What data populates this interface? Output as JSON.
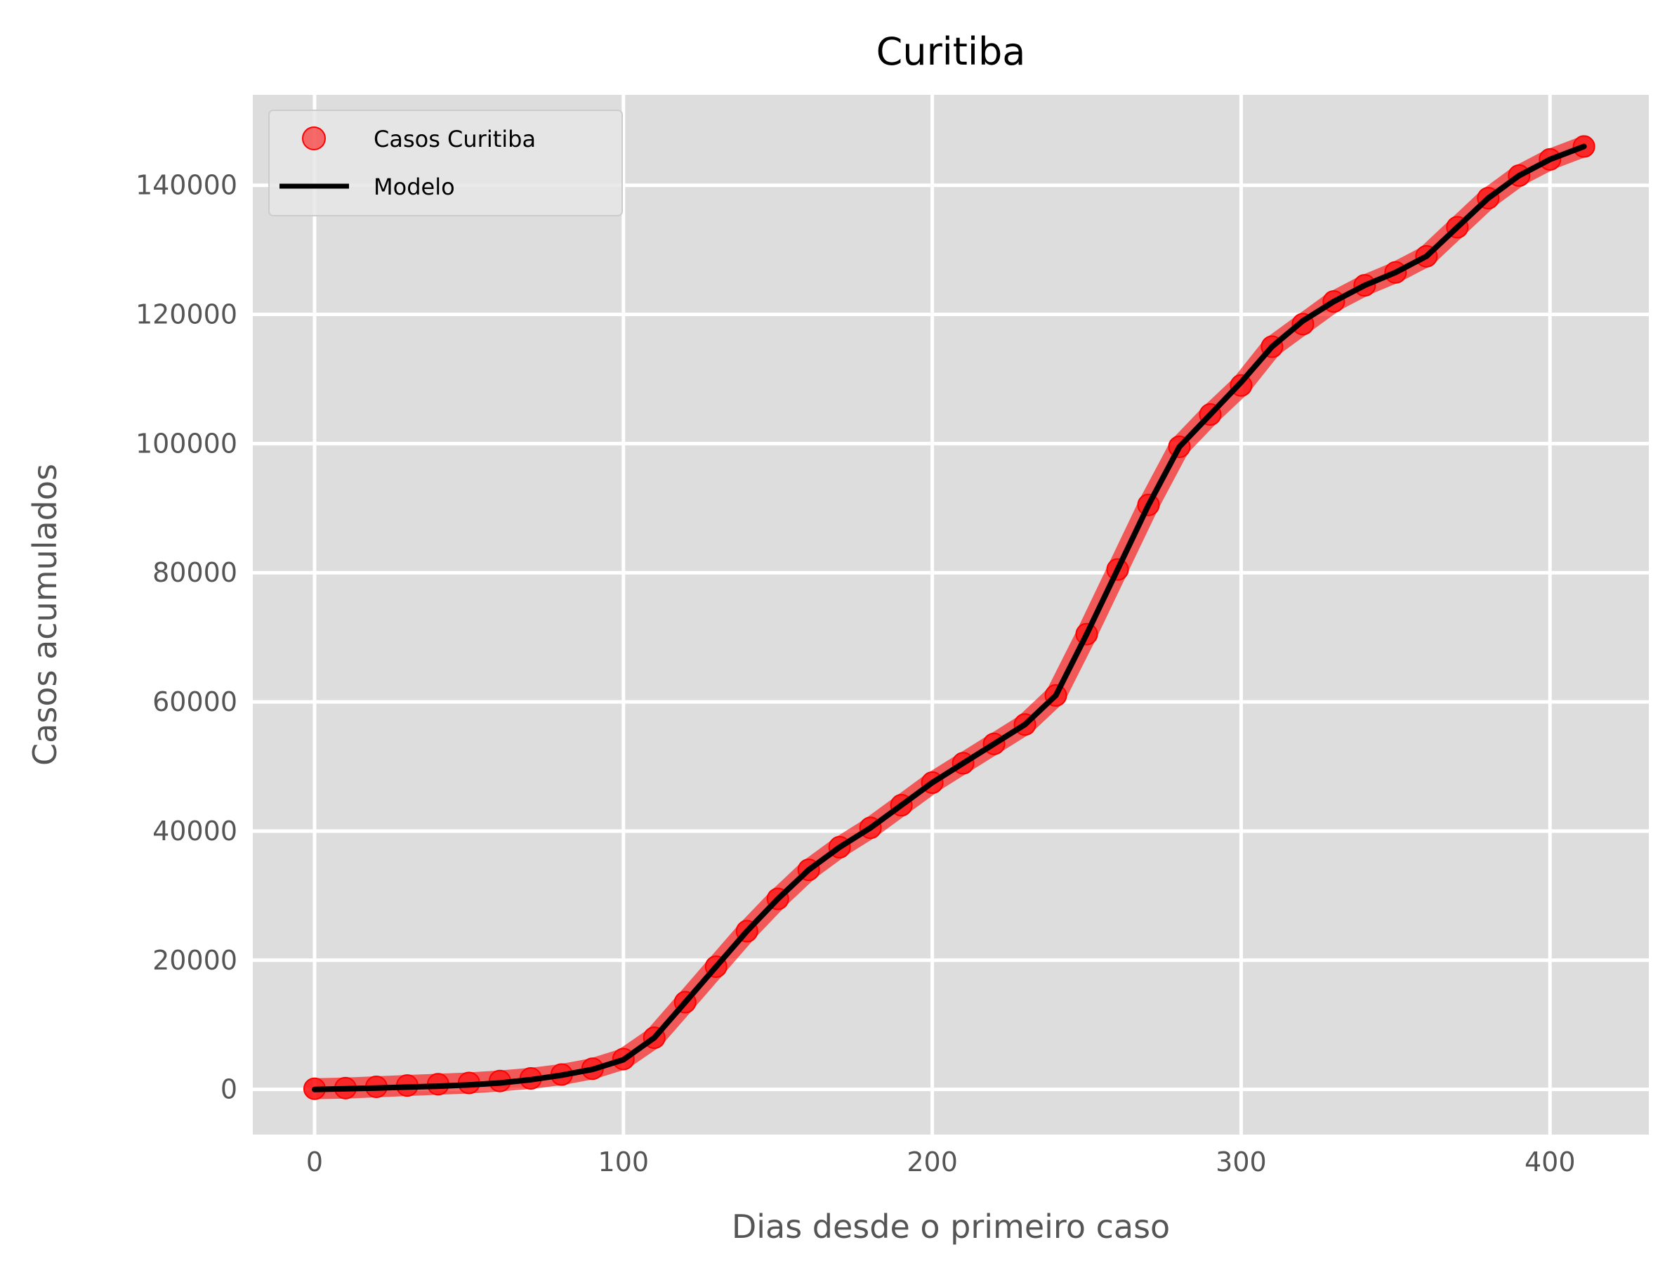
{
  "chart_data": {
    "type": "scatter",
    "title": "Curitiba",
    "xlabel": "Dias desde o primeiro caso",
    "ylabel": "Casos acumulados",
    "xlim": [
      -20,
      432
    ],
    "ylim": [
      -7000,
      154000
    ],
    "xticks": [
      0,
      100,
      200,
      300,
      400
    ],
    "xtick_labels": [
      "0",
      "100",
      "200",
      "300",
      "400"
    ],
    "yticks": [
      0,
      20000,
      40000,
      60000,
      80000,
      100000,
      120000,
      140000
    ],
    "ytick_labels": [
      "0",
      "20000",
      "40000",
      "60000",
      "80000",
      "100000",
      "120000",
      "140000"
    ],
    "grid": true,
    "legend_position": "top-left",
    "series": [
      {
        "name": "Casos Curitiba",
        "kind": "markers",
        "color": "#ff0000",
        "x": [
          0,
          10,
          20,
          30,
          40,
          50,
          60,
          70,
          80,
          90,
          100,
          110,
          120,
          130,
          140,
          150,
          160,
          170,
          180,
          190,
          200,
          210,
          220,
          230,
          240,
          250,
          260,
          270,
          280,
          290,
          300,
          310,
          320,
          330,
          340,
          350,
          360,
          370,
          380,
          390,
          400,
          411
        ],
        "y": [
          100,
          200,
          400,
          600,
          800,
          1000,
          1300,
          1700,
          2300,
          3200,
          4700,
          8000,
          13500,
          19000,
          24500,
          29500,
          34000,
          37500,
          40500,
          44000,
          47500,
          50500,
          53500,
          56500,
          61000,
          70500,
          80500,
          90500,
          99500,
          104500,
          109000,
          115000,
          118500,
          122000,
          124500,
          126500,
          129000,
          133500,
          138000,
          141500,
          144000,
          146000
        ]
      },
      {
        "name": "Modelo",
        "kind": "line",
        "color": "#000000",
        "x": [
          0,
          10,
          20,
          30,
          40,
          50,
          60,
          70,
          80,
          90,
          100,
          110,
          120,
          130,
          140,
          150,
          160,
          170,
          180,
          190,
          200,
          210,
          220,
          230,
          240,
          250,
          260,
          270,
          280,
          290,
          300,
          310,
          320,
          330,
          340,
          350,
          360,
          370,
          380,
          390,
          400,
          411
        ],
        "y": [
          0,
          100,
          200,
          350,
          500,
          700,
          1000,
          1500,
          2200,
          3100,
          4600,
          8000,
          13500,
          19000,
          24500,
          29500,
          34000,
          37500,
          40500,
          44000,
          47500,
          50500,
          53500,
          56500,
          61000,
          70500,
          80500,
          90500,
          99500,
          104500,
          109500,
          115000,
          119000,
          122000,
          124500,
          126500,
          129000,
          133500,
          138000,
          141500,
          144000,
          146000
        ]
      }
    ]
  },
  "colors": {
    "plot_background": "#dddddd",
    "grid": "#ffffff",
    "markers": "#ff0000",
    "model_line": "#000000"
  }
}
